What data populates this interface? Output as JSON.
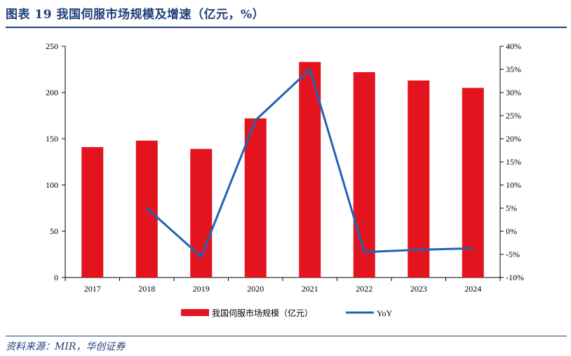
{
  "header": {
    "title": "图表 19    我国伺服市场规模及增速（亿元，%）"
  },
  "footer": {
    "source": "资料来源：MIR，华创证券"
  },
  "colors": {
    "bar": "#e3141e",
    "line": "#1f64b4",
    "title": "#1f3e7a",
    "axis": "#000000"
  },
  "chart_data": {
    "type": "bar",
    "categories": [
      "2017",
      "2018",
      "2019",
      "2020",
      "2021",
      "2022",
      "2023",
      "2024"
    ],
    "series": [
      {
        "name": "我国伺服市场规模（亿元）",
        "type": "bar",
        "axis": "left",
        "values": [
          141,
          148,
          139,
          172,
          233,
          222,
          213,
          205
        ]
      },
      {
        "name": "YoY",
        "type": "line",
        "axis": "right",
        "values": [
          null,
          5,
          -5.5,
          24,
          35,
          -4.5,
          -4,
          -3.7
        ]
      }
    ],
    "y_left": {
      "min": 0,
      "max": 250,
      "ticks": [
        "0",
        "50",
        "100",
        "150",
        "200",
        "250"
      ]
    },
    "y_right": {
      "min": -10,
      "max": 40,
      "ticks": [
        "-10%",
        "-5%",
        "0%",
        "5%",
        "10%",
        "15%",
        "20%",
        "25%",
        "30%",
        "35%",
        "40%"
      ]
    },
    "legend_position": "bottom-center",
    "grid": false
  }
}
